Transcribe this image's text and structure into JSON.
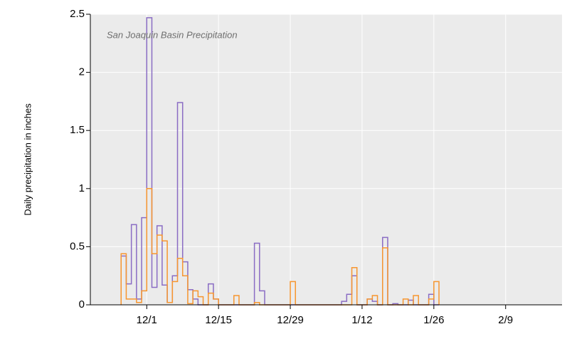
{
  "chart_data": {
    "type": "step",
    "title": "San Joaquin Basin Precipitation",
    "y_label": "Daily precipitation in inches",
    "x": [
      "11/26",
      "11/27",
      "11/28",
      "11/29",
      "11/30",
      "12/1",
      "12/2",
      "12/3",
      "12/4",
      "12/5",
      "12/6",
      "12/7",
      "12/8",
      "12/9",
      "12/10",
      "12/11",
      "12/12",
      "12/13",
      "12/14",
      "12/15",
      "12/16",
      "12/17",
      "12/18",
      "12/19",
      "12/20",
      "12/21",
      "12/22",
      "12/23",
      "12/24",
      "12/25",
      "12/26",
      "12/27",
      "12/28",
      "12/29",
      "12/30",
      "12/31",
      "1/1",
      "1/2",
      "1/3",
      "1/4",
      "1/5",
      "1/6",
      "1/7",
      "1/8",
      "1/9",
      "1/10",
      "1/11",
      "1/12",
      "1/13",
      "1/14",
      "1/15",
      "1/16",
      "1/17",
      "1/18",
      "1/19",
      "1/20",
      "1/21",
      "1/22",
      "1/23",
      "1/24",
      "1/25",
      "1/26"
    ],
    "series": [
      {
        "color": "#8a6cc4",
        "values": [
          0.42,
          0.18,
          0.69,
          0.05,
          0.75,
          2.47,
          0.15,
          0.68,
          0.17,
          0.02,
          0.25,
          1.74,
          0.37,
          0.13,
          0.05,
          0,
          0,
          0.18,
          0.05,
          0,
          0,
          0,
          0,
          0,
          0,
          0,
          0.53,
          0.12,
          0,
          0,
          0,
          0,
          0,
          0,
          0,
          0,
          0,
          0,
          0,
          0,
          0,
          0,
          0,
          0.03,
          0.09,
          0.25,
          0,
          0,
          0.05,
          0.03,
          0,
          0.58,
          0,
          0.01,
          0,
          0,
          0.04,
          0,
          0,
          0,
          0.09,
          0
        ]
      },
      {
        "color": "#f7962f",
        "values": [
          0.44,
          0.05,
          0.05,
          0.02,
          0.12,
          1.0,
          0.44,
          0.6,
          0.55,
          0.02,
          0.2,
          0.4,
          0.25,
          0.01,
          0.12,
          0.07,
          0,
          0.1,
          0.05,
          0,
          0,
          0,
          0.08,
          0,
          0,
          0,
          0.02,
          0,
          0,
          0,
          0,
          0,
          0,
          0.2,
          0,
          0,
          0,
          0,
          0,
          0,
          0,
          0,
          0,
          0,
          0,
          0.32,
          0,
          0,
          0.05,
          0.08,
          0,
          0.49,
          0,
          0,
          0,
          0.05,
          0,
          0.08,
          0,
          0,
          0.05,
          0.2
        ]
      }
    ],
    "xlim": [
      "11/20",
      "2/20"
    ],
    "xticks": [
      "12/1",
      "12/15",
      "12/29",
      "1/12",
      "1/26",
      "2/9"
    ],
    "ylim": [
      0,
      2.5
    ],
    "yticks": [
      0,
      0.5,
      1,
      1.5,
      2,
      2.5
    ],
    "grid": true
  }
}
